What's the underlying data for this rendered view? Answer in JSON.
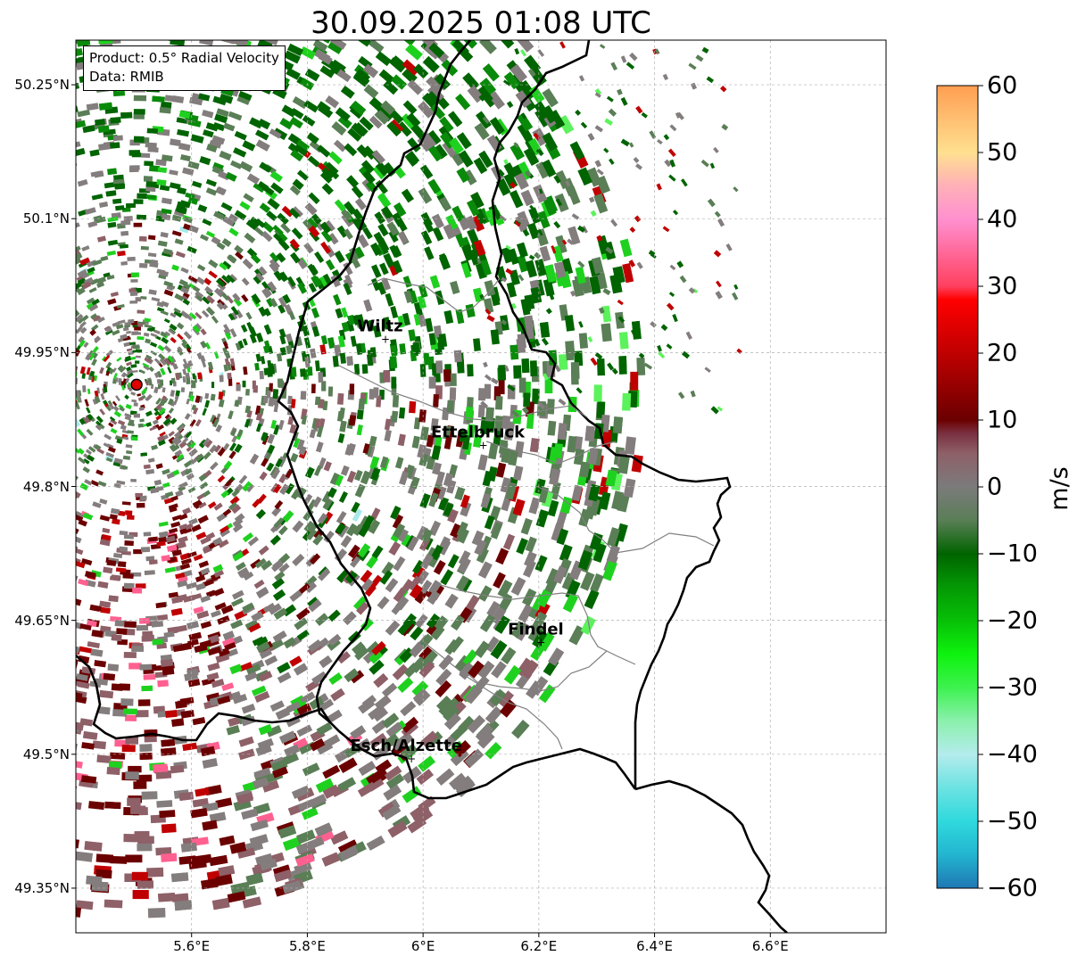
{
  "title": "30.09.2025 01:08 UTC",
  "info_box": {
    "line1": "Product: 0.5° Radial Velocity",
    "line2": "Data: RMIB"
  },
  "map": {
    "lon_range": [
      5.4,
      6.8
    ],
    "lat_range": [
      49.3,
      50.3
    ],
    "lat_ticks": [
      {
        "value": 50.25,
        "label": "50.25°N"
      },
      {
        "value": 50.1,
        "label": "50.1°N"
      },
      {
        "value": 49.95,
        "label": "49.95°N"
      },
      {
        "value": 49.8,
        "label": "49.8°N"
      },
      {
        "value": 49.65,
        "label": "49.65°N"
      },
      {
        "value": 49.5,
        "label": "49.5°N"
      },
      {
        "value": 49.35,
        "label": "49.35°N"
      }
    ],
    "lon_ticks": [
      {
        "value": 5.6,
        "label": "5.6°E"
      },
      {
        "value": 5.8,
        "label": "5.8°E"
      },
      {
        "value": 6.0,
        "label": "6°E"
      },
      {
        "value": 6.2,
        "label": "6.2°E"
      },
      {
        "value": 6.4,
        "label": "6.4°E"
      },
      {
        "value": 6.6,
        "label": "6.6°E"
      }
    ],
    "radar_site": {
      "lon": 5.505,
      "lat": 49.914
    },
    "cities": [
      {
        "name": "Wiltz",
        "lon": 5.935,
        "lat": 49.966
      },
      {
        "name": "Ettelbruck",
        "lon": 6.104,
        "lat": 49.847
      },
      {
        "name": "Findel",
        "lon": 6.204,
        "lat": 49.626
      },
      {
        "name": "Esch/Alzette",
        "lon": 5.98,
        "lat": 49.496
      }
    ]
  },
  "colorbar": {
    "label": "m/s",
    "min": -60,
    "max": 60,
    "ticks": [
      {
        "value": 60,
        "label": "60"
      },
      {
        "value": 50,
        "label": "50"
      },
      {
        "value": 40,
        "label": "40"
      },
      {
        "value": 30,
        "label": "30"
      },
      {
        "value": 20,
        "label": "20"
      },
      {
        "value": 10,
        "label": "10"
      },
      {
        "value": 0,
        "label": "0"
      },
      {
        "value": -10,
        "label": "−10"
      },
      {
        "value": -20,
        "label": "−20"
      },
      {
        "value": -30,
        "label": "−30"
      },
      {
        "value": -40,
        "label": "−40"
      },
      {
        "value": -50,
        "label": "−50"
      },
      {
        "value": -60,
        "label": "−60"
      }
    ],
    "stops": [
      {
        "value": -60,
        "color": "#1f77b4"
      },
      {
        "value": -55,
        "color": "#23b5d0"
      },
      {
        "value": -50,
        "color": "#2fd9dd"
      },
      {
        "value": -45,
        "color": "#6ce2e2"
      },
      {
        "value": -40,
        "color": "#b4ecec"
      },
      {
        "value": -35,
        "color": "#8bf0ad"
      },
      {
        "value": -30,
        "color": "#3df24f"
      },
      {
        "value": -25,
        "color": "#0ef20e"
      },
      {
        "value": -20,
        "color": "#07c007"
      },
      {
        "value": -15,
        "color": "#049904"
      },
      {
        "value": -10,
        "color": "#006400"
      },
      {
        "value": -5,
        "color": "#5a7e56"
      },
      {
        "value": 0,
        "color": "#7b7b7b"
      },
      {
        "value": 5,
        "color": "#8e6068"
      },
      {
        "value": 8,
        "color": "#7a3040"
      },
      {
        "value": 10,
        "color": "#6b0000"
      },
      {
        "value": 20,
        "color": "#c00000"
      },
      {
        "value": 28,
        "color": "#ff0000"
      },
      {
        "value": 30,
        "color": "#ff4060"
      },
      {
        "value": 40,
        "color": "#ff90d0"
      },
      {
        "value": 45,
        "color": "#ffb0b8"
      },
      {
        "value": 50,
        "color": "#ffe090"
      },
      {
        "value": 60,
        "color": "#ff9e52"
      }
    ]
  }
}
